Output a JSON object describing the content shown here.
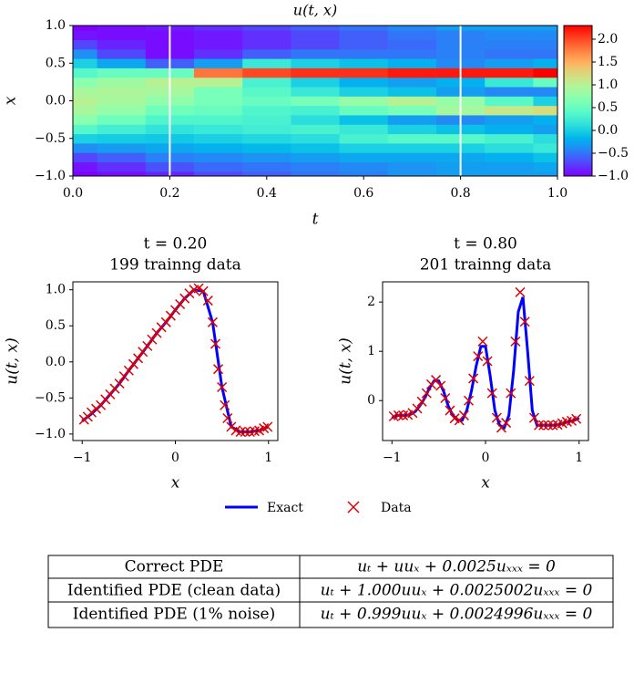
{
  "chart_data": [
    {
      "type": "heatmap",
      "title": "u(t, x)",
      "xlabel": "t",
      "ylabel": "x",
      "colormap": "rainbow",
      "x": [
        0,
        0.1,
        0.2,
        0.3,
        0.4,
        0.5,
        0.6,
        0.7,
        0.8,
        0.9,
        1.0
      ],
      "y": [
        -1,
        -0.875,
        -0.75,
        -0.625,
        -0.5,
        -0.375,
        -0.25,
        -0.125,
        0,
        0.125,
        0.25,
        0.375,
        0.5,
        0.625,
        0.75,
        0.875,
        1
      ],
      "values": [
        [
          -1,
          -0.92,
          -0.71,
          -0.38,
          0,
          0.38,
          0.71,
          0.92,
          1,
          0.92,
          0.71,
          0.38,
          0,
          -0.38,
          -0.71,
          -0.92,
          -1
        ],
        [
          -0.95,
          -0.8,
          -0.6,
          -0.32,
          -0.03,
          0.27,
          0.55,
          0.78,
          0.9,
          0.95,
          0.85,
          0.5,
          -0.25,
          -0.7,
          -0.85,
          -0.95,
          -0.95
        ],
        [
          -0.85,
          -0.65,
          -0.45,
          -0.25,
          -0.05,
          0.15,
          0.35,
          0.55,
          0.75,
          0.9,
          1.0,
          0.5,
          -0.6,
          -0.95,
          -0.95,
          -0.95,
          -0.9
        ],
        [
          -0.7,
          -0.55,
          -0.4,
          -0.2,
          0,
          0.2,
          0.35,
          0.5,
          0.6,
          0.6,
          1.0,
          1.8,
          -0.3,
          -0.8,
          -0.9,
          -0.9,
          -0.8
        ],
        [
          -0.6,
          -0.5,
          -0.35,
          -0.15,
          0.05,
          0.25,
          0.3,
          0.35,
          0.5,
          0.4,
          0.3,
          2.0,
          0.2,
          -0.6,
          -0.8,
          -0.8,
          -0.7
        ],
        [
          -0.5,
          -0.45,
          -0.3,
          -0.1,
          0.1,
          0.3,
          0.1,
          0.3,
          0.6,
          0.2,
          0,
          2.1,
          0,
          -0.5,
          -0.7,
          -0.7,
          -0.6
        ],
        [
          -0.45,
          -0.4,
          -0.25,
          0,
          0.3,
          0.2,
          -0.1,
          0.5,
          0.8,
          0,
          -0.2,
          2.1,
          -0.1,
          -0.5,
          -0.6,
          -0.6,
          -0.5
        ],
        [
          -0.35,
          -0.35,
          -0.25,
          0,
          0.4,
          0,
          -0.3,
          0.6,
          1.0,
          -0.1,
          -0.3,
          2.2,
          -0.2,
          -0.5,
          -0.55,
          -0.5,
          -0.4
        ],
        [
          -0.3,
          -0.3,
          -0.25,
          0,
          0.4,
          -0.1,
          -0.4,
          0.9,
          0.8,
          -0.3,
          -0.2,
          2.2,
          -0.4,
          -0.45,
          -0.45,
          -0.45,
          -0.3
        ],
        [
          -0.3,
          -0.3,
          -0.2,
          0.1,
          0.3,
          -0.2,
          -0.3,
          1.1,
          0.4,
          -0.4,
          0.2,
          2.2,
          -0.3,
          -0.5,
          -0.45,
          -0.4,
          -0.3
        ],
        [
          -0.3,
          -0.25,
          -0.1,
          0.2,
          0.1,
          -0.3,
          -0.2,
          1.2,
          0,
          -0.4,
          0.5,
          2.3,
          -0.2,
          -0.5,
          -0.45,
          -0.4,
          -0.3
        ]
      ],
      "xlim": [
        0,
        1
      ],
      "ylim": [
        -1,
        1
      ],
      "zlim": [
        -1,
        2.3
      ],
      "xticks": [
        {
          "value": 0,
          "label": "0.0"
        },
        0.2,
        0.4,
        0.6,
        0.8,
        {
          "value": 1,
          "label": "1.0"
        }
      ],
      "yticks": [
        {
          "value": -1,
          "label": "−1.0"
        },
        {
          "value": -0.5,
          "label": "−0.5"
        },
        {
          "value": 0,
          "label": "0.0"
        },
        0.5,
        {
          "value": 1,
          "label": "1.0"
        }
      ],
      "zticks": [
        {
          "value": -1,
          "label": "−1.0"
        },
        {
          "value": -0.5,
          "label": "−0.5"
        },
        {
          "value": 0,
          "label": "0.0"
        },
        0.5,
        {
          "value": 1,
          "label": "1.0"
        },
        1.5,
        {
          "value": 2,
          "label": "2.0"
        }
      ],
      "vlines": [
        0.2,
        0.8
      ],
      "vline_color": "#ffffff"
    },
    {
      "type": "line",
      "title": "t = 0.20",
      "subtitle": "199 trainng data",
      "xlabel": "x",
      "ylabel": "u(t, x)",
      "xlim": [
        -1.1,
        1.1
      ],
      "ylim": [
        -1.09,
        1.11
      ],
      "xticks": [
        {
          "value": -1,
          "label": "−1"
        },
        0,
        1
      ],
      "yticks": [
        {
          "value": -1,
          "label": "−1.0"
        },
        {
          "value": -0.5,
          "label": "−0.5"
        },
        {
          "value": 0,
          "label": "0.0"
        },
        0.5,
        {
          "value": 1,
          "label": "1.0"
        }
      ],
      "series": [
        {
          "name": "Exact",
          "color": "#0000ff",
          "style": "line",
          "x": [
            -1,
            -0.9,
            -0.8,
            -0.7,
            -0.6,
            -0.5,
            -0.4,
            -0.3,
            -0.2,
            -0.1,
            0,
            0.1,
            0.2,
            0.3,
            0.4,
            0.5,
            0.6,
            0.7,
            0.8,
            0.9,
            1
          ],
          "values": [
            -0.82,
            -0.72,
            -0.6,
            -0.45,
            -0.3,
            -0.12,
            0.05,
            0.22,
            0.4,
            0.55,
            0.72,
            0.88,
            1.0,
            0.98,
            0.55,
            -0.35,
            -0.9,
            -0.97,
            -0.97,
            -0.95,
            -0.9
          ]
        },
        {
          "name": "Data",
          "color": "#dd0000",
          "style": "markers",
          "x": [
            -0.98,
            -0.94,
            -0.9,
            -0.85,
            -0.8,
            -0.75,
            -0.7,
            -0.65,
            -0.6,
            -0.55,
            -0.5,
            -0.45,
            -0.4,
            -0.35,
            -0.3,
            -0.25,
            -0.2,
            -0.15,
            -0.1,
            -0.05,
            0,
            0.05,
            0.1,
            0.15,
            0.2,
            0.25,
            0.3,
            0.35,
            0.4,
            0.43,
            0.46,
            0.5,
            0.53,
            0.56,
            0.6,
            0.65,
            0.7,
            0.75,
            0.8,
            0.85,
            0.9,
            0.95,
            0.99
          ],
          "values": [
            -0.8,
            -0.76,
            -0.7,
            -0.65,
            -0.6,
            -0.52,
            -0.45,
            -0.37,
            -0.3,
            -0.2,
            -0.12,
            -0.03,
            0.05,
            0.14,
            0.22,
            0.31,
            0.4,
            0.48,
            0.55,
            0.64,
            0.72,
            0.8,
            0.88,
            0.95,
            1.0,
            1.02,
            0.98,
            0.85,
            0.55,
            0.25,
            -0.1,
            -0.35,
            -0.6,
            -0.78,
            -0.9,
            -0.95,
            -0.97,
            -0.97,
            -0.97,
            -0.96,
            -0.95,
            -0.92,
            -0.9
          ]
        }
      ]
    },
    {
      "type": "line",
      "title": "t = 0.80",
      "subtitle": "201 trainng data",
      "xlabel": "x",
      "ylabel": "u(t, x)",
      "xlim": [
        -1.1,
        1.1
      ],
      "ylim": [
        -0.81,
        2.41
      ],
      "xticks": [
        {
          "value": -1,
          "label": "−1"
        },
        0,
        1
      ],
      "yticks": [
        0,
        1,
        2
      ],
      "series": [
        {
          "name": "Exact",
          "color": "#0000ff",
          "style": "line",
          "x": [
            -1,
            -0.95,
            -0.9,
            -0.85,
            -0.8,
            -0.75,
            -0.7,
            -0.65,
            -0.6,
            -0.55,
            -0.5,
            -0.45,
            -0.4,
            -0.35,
            -0.3,
            -0.25,
            -0.2,
            -0.15,
            -0.1,
            -0.05,
            0,
            0.05,
            0.1,
            0.15,
            0.2,
            0.25,
            0.3,
            0.35,
            0.4,
            0.45,
            0.5,
            0.55,
            0.6,
            0.65,
            0.7,
            0.75,
            0.8,
            0.85,
            0.9,
            0.95,
            1
          ],
          "values": [
            -0.35,
            -0.3,
            -0.3,
            -0.3,
            -0.28,
            -0.22,
            -0.1,
            0.05,
            0.25,
            0.4,
            0.4,
            0.2,
            -0.1,
            -0.3,
            -0.4,
            -0.4,
            -0.2,
            0.2,
            0.7,
            1.1,
            1.1,
            0.5,
            -0.2,
            -0.5,
            -0.55,
            -0.3,
            0.6,
            1.8,
            2.1,
            1.0,
            -0.2,
            -0.5,
            -0.5,
            -0.5,
            -0.5,
            -0.5,
            -0.48,
            -0.45,
            -0.42,
            -0.4,
            -0.35
          ]
        },
        {
          "name": "Data",
          "color": "#dd0000",
          "style": "markers",
          "x": [
            -0.98,
            -0.93,
            -0.88,
            -0.83,
            -0.78,
            -0.73,
            -0.68,
            -0.63,
            -0.58,
            -0.53,
            -0.48,
            -0.43,
            -0.38,
            -0.33,
            -0.28,
            -0.23,
            -0.18,
            -0.13,
            -0.08,
            -0.03,
            0.02,
            0.07,
            0.12,
            0.17,
            0.22,
            0.27,
            0.32,
            0.37,
            0.42,
            0.47,
            0.52,
            0.57,
            0.62,
            0.67,
            0.72,
            0.77,
            0.82,
            0.87,
            0.92,
            0.97
          ],
          "values": [
            -0.32,
            -0.3,
            -0.3,
            -0.29,
            -0.25,
            -0.16,
            -0.02,
            0.15,
            0.33,
            0.42,
            0.3,
            0.05,
            -0.2,
            -0.36,
            -0.4,
            -0.3,
            0,
            0.45,
            0.9,
            1.2,
            0.8,
            0.15,
            -0.35,
            -0.55,
            -0.45,
            0.15,
            1.2,
            2.2,
            1.6,
            0.4,
            -0.35,
            -0.5,
            -0.5,
            -0.5,
            -0.5,
            -0.49,
            -0.46,
            -0.43,
            -0.41,
            -0.37
          ]
        }
      ]
    }
  ],
  "table": {
    "rows": [
      [
        "Correct PDE",
        "uₜ + uuₓ + 0.0025uₓₓₓ = 0"
      ],
      [
        "Identified PDE (clean data)",
        "uₜ + 1.000uuₓ + 0.0025002uₓₓₓ = 0"
      ],
      [
        "Identified PDE (1% noise)",
        "uₜ + 0.999uuₓ + 0.0024996uₓₓₓ = 0"
      ]
    ]
  }
}
